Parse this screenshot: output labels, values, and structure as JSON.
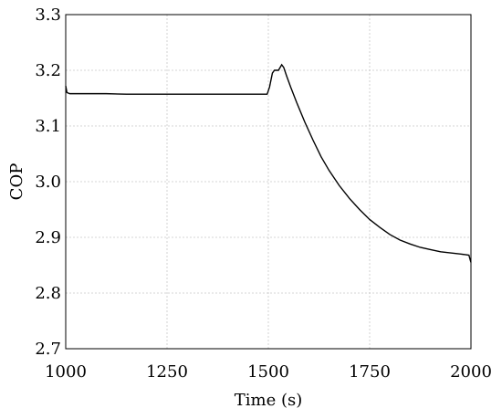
{
  "chart_data": {
    "type": "line",
    "title": "",
    "xlabel": "Time (s)",
    "ylabel": "COP",
    "xlim": [
      1000,
      2000
    ],
    "ylim": [
      2.7,
      3.3
    ],
    "xticks": [
      1000,
      1250,
      1500,
      1750,
      2000
    ],
    "yticks": [
      2.7,
      2.8,
      2.9,
      3.0,
      3.1,
      3.2,
      3.3
    ],
    "xtick_labels": [
      "1000",
      "1250",
      "1500",
      "1750",
      "2000"
    ],
    "ytick_labels": [
      "2.7",
      "2.8",
      "2.9",
      "3.0",
      "3.1",
      "3.2",
      "3.3"
    ],
    "grid": true,
    "series": [
      {
        "name": "",
        "color": "#000000",
        "x": [
          1000,
          1003,
          1010,
          1050,
          1100,
          1150,
          1200,
          1250,
          1300,
          1350,
          1400,
          1450,
          1497,
          1503,
          1510,
          1515,
          1525,
          1533,
          1538,
          1545,
          1555,
          1570,
          1590,
          1610,
          1630,
          1650,
          1675,
          1700,
          1725,
          1750,
          1775,
          1800,
          1825,
          1850,
          1875,
          1900,
          1925,
          1950,
          1975,
          1995,
          1998,
          2000
        ],
        "y": [
          3.172,
          3.16,
          3.158,
          3.158,
          3.158,
          3.157,
          3.157,
          3.157,
          3.157,
          3.157,
          3.157,
          3.157,
          3.157,
          3.17,
          3.195,
          3.2,
          3.2,
          3.21,
          3.205,
          3.19,
          3.17,
          3.142,
          3.107,
          3.075,
          3.045,
          3.02,
          2.993,
          2.97,
          2.95,
          2.932,
          2.918,
          2.905,
          2.895,
          2.888,
          2.882,
          2.878,
          2.874,
          2.872,
          2.87,
          2.868,
          2.86,
          2.855
        ]
      }
    ]
  }
}
